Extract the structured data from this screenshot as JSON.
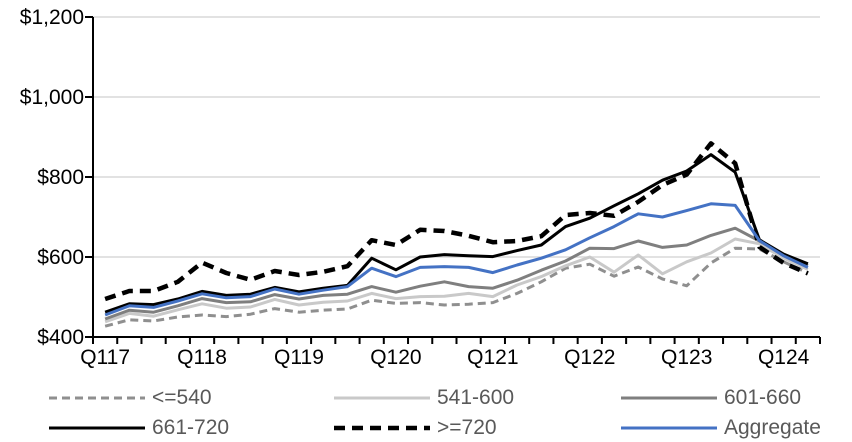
{
  "chart_data": {
    "type": "line",
    "title": "",
    "xlabel": "",
    "ylabel": "",
    "y_axis": {
      "min": 400,
      "max": 1200,
      "step": 200,
      "tick_labels": [
        "$400",
        "$600",
        "$800",
        "$1,000",
        "$1,200"
      ]
    },
    "x_axis": {
      "tick_labels": [
        "Q117",
        "Q118",
        "Q119",
        "Q120",
        "Q121",
        "Q122",
        "Q123",
        "Q124"
      ],
      "label_category_indices": [
        0,
        4,
        8,
        12,
        16,
        20,
        24,
        28
      ]
    },
    "grid": "horizontal",
    "legend_position": "bottom",
    "categories": [
      "2017Q1",
      "2017Q2",
      "2017Q3",
      "2017Q4",
      "2018Q1",
      "2018Q2",
      "2018Q3",
      "2018Q4",
      "2019Q1",
      "2019Q2",
      "2019Q3",
      "2019Q4",
      "2020Q1",
      "2020Q2",
      "2020Q3",
      "2020Q4",
      "2021Q1",
      "2021Q2",
      "2021Q3",
      "2021Q4",
      "2022Q1",
      "2022Q2",
      "2022Q3",
      "2022Q4",
      "2023Q1",
      "2023Q2",
      "2023Q3",
      "2023Q4",
      "2024Q1",
      "2024Q2"
    ],
    "series": [
      {
        "name": "<=540",
        "color": "#8f8f8f",
        "style": "dashed",
        "values": [
          427,
          443,
          440,
          450,
          455,
          451,
          457,
          471,
          462,
          467,
          470,
          492,
          484,
          486,
          480,
          482,
          486,
          509,
          538,
          572,
          582,
          552,
          575,
          545,
          528,
          585,
          622,
          620,
          588,
          560
        ]
      },
      {
        "name": "541-600",
        "color": "#c9c9c9",
        "style": "solid",
        "values": [
          438,
          459,
          452,
          468,
          483,
          472,
          475,
          494,
          480,
          487,
          490,
          509,
          496,
          501,
          502,
          509,
          501,
          530,
          551,
          578,
          600,
          562,
          605,
          558,
          588,
          610,
          645,
          633,
          597,
          569
        ]
      },
      {
        "name": "601-660",
        "color": "#7f7f7f",
        "style": "solid",
        "values": [
          445,
          467,
          462,
          478,
          496,
          486,
          488,
          506,
          495,
          504,
          507,
          526,
          512,
          527,
          538,
          526,
          522,
          542,
          567,
          590,
          622,
          621,
          640,
          624,
          630,
          654,
          672,
          640,
          607,
          579
        ]
      },
      {
        "name": "661-720",
        "color": "#000000",
        "style": "solid",
        "values": [
          462,
          483,
          481,
          495,
          514,
          504,
          507,
          524,
          513,
          522,
          529,
          597,
          568,
          600,
          606,
          603,
          601,
          616,
          630,
          676,
          697,
          728,
          758,
          792,
          815,
          856,
          812,
          643,
          607,
          583
        ]
      },
      {
        "name": ">=720",
        "color": "#000000",
        "style": "dashed-bold",
        "values": [
          495,
          515,
          515,
          538,
          586,
          560,
          543,
          565,
          555,
          563,
          577,
          642,
          630,
          668,
          665,
          653,
          637,
          640,
          652,
          705,
          710,
          703,
          738,
          780,
          806,
          884,
          834,
          625,
          585,
          559
        ]
      },
      {
        "name": "Aggregate",
        "color": "#4472c4",
        "style": "solid",
        "values": [
          455,
          478,
          474,
          490,
          508,
          498,
          501,
          520,
          507,
          517,
          526,
          572,
          551,
          574,
          576,
          574,
          561,
          580,
          597,
          618,
          648,
          676,
          708,
          700,
          716,
          733,
          729,
          641,
          603,
          574
        ]
      }
    ],
    "colors": {
      "axis": "#000000",
      "gridline": "#d9d9d9",
      "legend_text": "#595959",
      "accent_blue": "#4472c4"
    }
  }
}
